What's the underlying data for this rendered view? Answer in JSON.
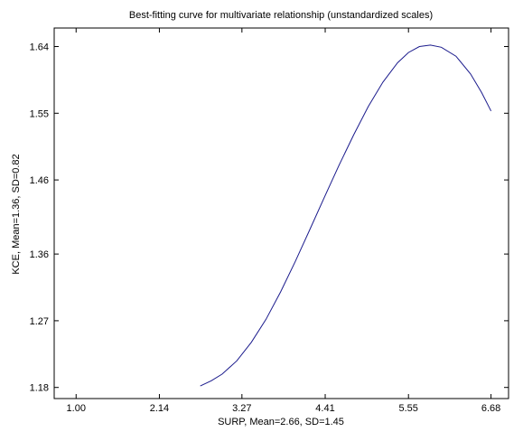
{
  "chart_data": {
    "type": "line",
    "title": "Best-fitting curve for multivariate relationship (unstandardized scales)",
    "xlabel": "SURP, Mean=2.66, SD=1.45",
    "ylabel": "KCE, Mean=1.36, SD=0.82",
    "x_ticks": [
      "1.00",
      "2.14",
      "3.27",
      "4.41",
      "5.55",
      "6.68"
    ],
    "x_tick_values": [
      1.0,
      2.14,
      3.27,
      4.41,
      5.55,
      6.68
    ],
    "y_ticks": [
      "1.64",
      "1.55",
      "1.46",
      "1.36",
      "1.27",
      "1.18"
    ],
    "y_tick_values": [
      1.64,
      1.55,
      1.46,
      1.36,
      1.27,
      1.18
    ],
    "xlim": [
      0.7,
      6.92
    ],
    "ylim": [
      1.165,
      1.665
    ],
    "grid": false,
    "series": [
      {
        "color": "#1a1a8c",
        "x": [
          2.7,
          2.85,
          3.0,
          3.2,
          3.4,
          3.6,
          3.8,
          4.0,
          4.2,
          4.41,
          4.6,
          4.8,
          5.0,
          5.2,
          5.4,
          5.55,
          5.7,
          5.85,
          6.0,
          6.2,
          6.4,
          6.55,
          6.68
        ],
        "y": [
          1.182,
          1.189,
          1.198,
          1.216,
          1.241,
          1.272,
          1.309,
          1.35,
          1.393,
          1.439,
          1.48,
          1.521,
          1.559,
          1.592,
          1.618,
          1.632,
          1.64,
          1.642,
          1.639,
          1.627,
          1.603,
          1.578,
          1.553
        ]
      }
    ]
  }
}
